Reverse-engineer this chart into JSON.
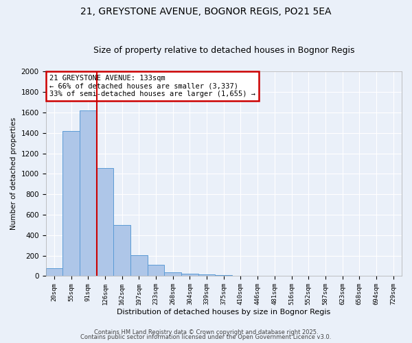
{
  "title1": "21, GREYSTONE AVENUE, BOGNOR REGIS, PO21 5EA",
  "title2": "Size of property relative to detached houses in Bognor Regis",
  "xlabel": "Distribution of detached houses by size in Bognor Regis",
  "ylabel": "Number of detached properties",
  "categories": [
    "20sqm",
    "55sqm",
    "91sqm",
    "126sqm",
    "162sqm",
    "197sqm",
    "233sqm",
    "268sqm",
    "304sqm",
    "339sqm",
    "375sqm",
    "410sqm",
    "446sqm",
    "481sqm",
    "516sqm",
    "552sqm",
    "587sqm",
    "623sqm",
    "658sqm",
    "694sqm",
    "729sqm"
  ],
  "values": [
    80,
    1420,
    1620,
    1055,
    500,
    205,
    110,
    40,
    25,
    15,
    10,
    0,
    0,
    0,
    0,
    0,
    0,
    0,
    0,
    0,
    0
  ],
  "bar_color": "#aec6e8",
  "bar_edge_color": "#5b9bd5",
  "red_line_x": 2.5,
  "annotation_line1": "21 GREYSTONE AVENUE: 133sqm",
  "annotation_line2": "← 66% of detached houses are smaller (3,337)",
  "annotation_line3": "33% of semi-detached houses are larger (1,655) →",
  "annotation_box_color": "#ffffff",
  "annotation_box_edge": "#cc0000",
  "ylim": [
    0,
    2000
  ],
  "yticks": [
    0,
    200,
    400,
    600,
    800,
    1000,
    1200,
    1400,
    1600,
    1800,
    2000
  ],
  "footer1": "Contains HM Land Registry data © Crown copyright and database right 2025.",
  "footer2": "Contains public sector information licensed under the Open Government Licence v3.0.",
  "bg_color": "#eaf0f9",
  "grid_color": "#ffffff",
  "title_fontsize": 10,
  "subtitle_fontsize": 9
}
